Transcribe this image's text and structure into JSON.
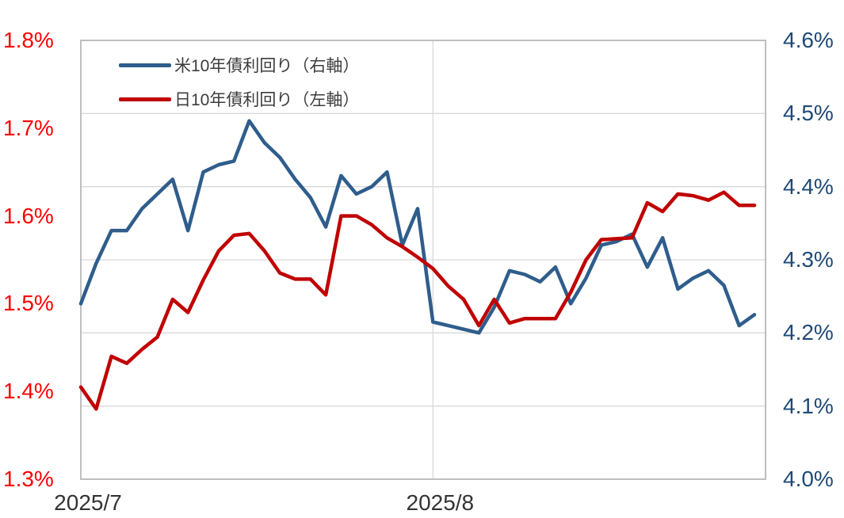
{
  "chart_data": {
    "type": "line",
    "x_axis": {
      "tick_labels": [
        "2025/7",
        "2025/8"
      ],
      "tick_point_indices": [
        0,
        23
      ],
      "n_points": 45,
      "label_color": "#333333"
    },
    "left_axis": {
      "min": 1.3,
      "max": 1.8,
      "label_color": "#FF0000",
      "ticks": [
        {
          "label": "1.8%",
          "value": 1.8
        },
        {
          "label": "1.7%",
          "value": 1.7
        },
        {
          "label": "1.6%",
          "value": 1.6
        },
        {
          "label": "1.5%",
          "value": 1.5
        },
        {
          "label": "1.4%",
          "value": 1.4
        },
        {
          "label": "1.3%",
          "value": 1.3
        }
      ]
    },
    "right_axis": {
      "min": 4.0,
      "max": 4.6,
      "label_color": "#1F4977",
      "ticks": [
        {
          "label": "4.6%",
          "value": 4.6
        },
        {
          "label": "4.5%",
          "value": 4.5
        },
        {
          "label": "4.4%",
          "value": 4.4
        },
        {
          "label": "4.3%",
          "value": 4.3
        },
        {
          "label": "4.2%",
          "value": 4.2
        },
        {
          "label": "4.1%",
          "value": 4.1
        },
        {
          "label": "4.0%",
          "value": 4.0
        }
      ]
    },
    "grid": {
      "show": true,
      "line_color": "#D9D9D9",
      "border_color": "#BFBFBF",
      "gridlines_follow": "right_axis"
    },
    "legend": {
      "position": "top-left-inside"
    },
    "series": [
      {
        "name": "米10年債利回り（右軸）",
        "axis": "right",
        "color": "#2F5D8C",
        "values": [
          4.24,
          4.295,
          4.34,
          4.34,
          4.37,
          4.39,
          4.41,
          4.34,
          4.42,
          4.43,
          4.435,
          4.49,
          4.46,
          4.44,
          4.41,
          4.385,
          4.345,
          4.415,
          4.39,
          4.4,
          4.42,
          4.32,
          4.37,
          4.215,
          4.21,
          4.205,
          4.2,
          4.235,
          4.285,
          4.28,
          4.27,
          4.29,
          4.24,
          4.275,
          4.32,
          4.325,
          4.335,
          4.29,
          4.33,
          4.26,
          4.275,
          4.285,
          4.265,
          4.21,
          4.225
        ]
      },
      {
        "name": "日10年債利回り（左軸）",
        "axis": "left",
        "color": "#C00000",
        "values": [
          1.405,
          1.38,
          1.44,
          1.432,
          1.448,
          1.462,
          1.505,
          1.49,
          1.527,
          1.56,
          1.578,
          1.58,
          1.56,
          1.535,
          1.528,
          1.528,
          1.51,
          1.6,
          1.6,
          1.59,
          1.575,
          1.565,
          1.553,
          1.54,
          1.52,
          1.505,
          1.475,
          1.505,
          1.478,
          1.483,
          1.483,
          1.483,
          1.513,
          1.55,
          1.573,
          1.574,
          1.575,
          1.615,
          1.605,
          1.625,
          1.623,
          1.618,
          1.627,
          1.612,
          1.612
        ]
      }
    ]
  }
}
